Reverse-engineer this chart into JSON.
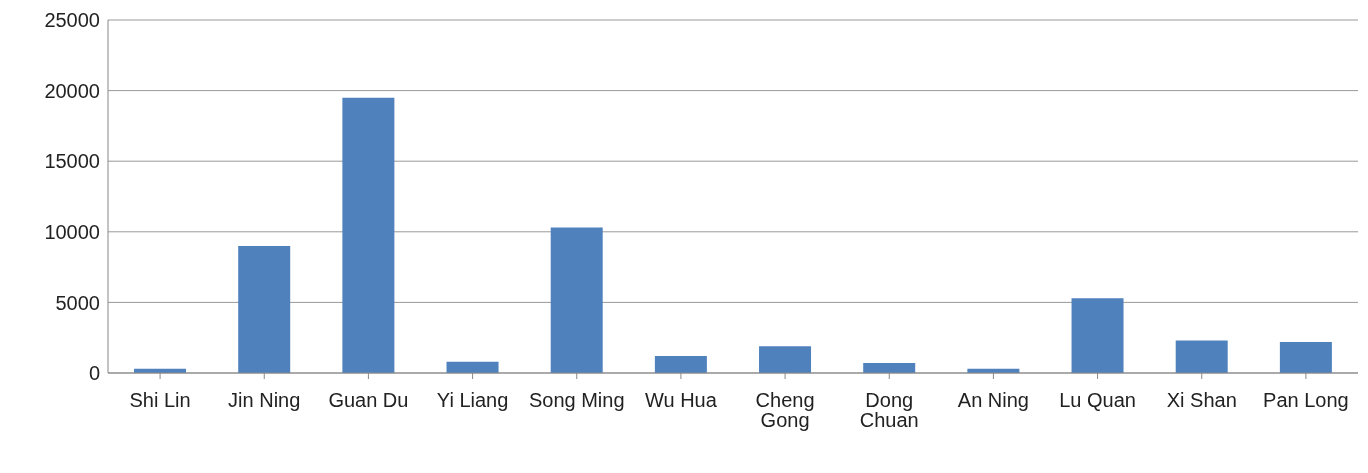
{
  "chart_data": {
    "type": "bar",
    "categories": [
      "Shi Lin",
      "Jin Ning",
      "Guan Du",
      "Yi Liang",
      "Song Ming",
      "Wu Hua",
      "Cheng Gong",
      "Dong Chuan",
      "An Ning",
      "Lu Quan",
      "Xi Shan",
      "Pan Long"
    ],
    "values": [
      300,
      9000,
      19500,
      800,
      10300,
      1200,
      1900,
      700,
      300,
      5300,
      2300,
      2200
    ],
    "color": "#4f81bd",
    "ylim": [
      0,
      25000
    ],
    "yticks": [
      0,
      5000,
      10000,
      15000,
      20000,
      25000
    ],
    "grid": "y",
    "legend": false
  }
}
